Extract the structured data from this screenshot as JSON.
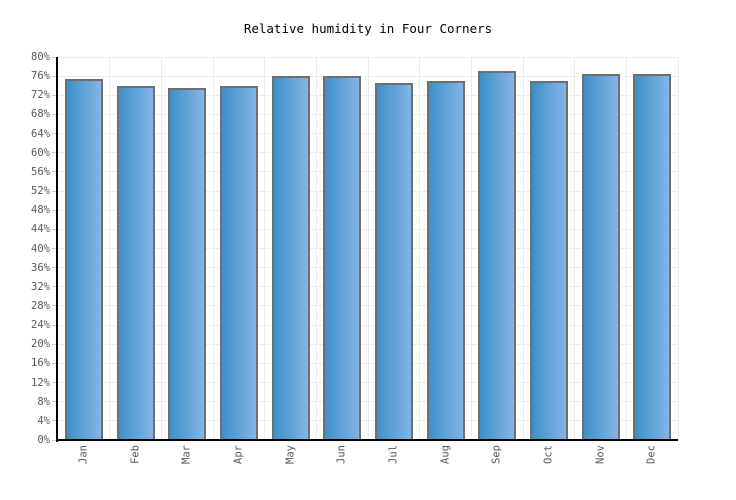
{
  "title": "Relative humidity in Four Corners",
  "chart_data": {
    "type": "bar",
    "title": "Relative humidity in Four Corners",
    "categories": [
      "Jan",
      "Feb",
      "Mar",
      "Apr",
      "May",
      "Jun",
      "Jul",
      "Aug",
      "Sep",
      "Oct",
      "Nov",
      "Dec"
    ],
    "values": [
      75.5,
      74,
      73.5,
      74,
      76,
      76,
      74.5,
      75,
      77,
      75,
      76.5,
      76.5
    ],
    "unit": "%",
    "xlabel": "",
    "ylabel": "",
    "ylim": [
      0,
      80
    ],
    "yticks": {
      "step": 4,
      "suffix": "%",
      "labels": [
        "0%",
        "4%",
        "8%",
        "12%",
        "16%",
        "20%",
        "24%",
        "28%",
        "32%",
        "36%",
        "40%",
        "44%",
        "48%",
        "52%",
        "56%",
        "60%",
        "64%",
        "68%",
        "72%",
        "76%",
        "80%"
      ]
    },
    "grid": true,
    "legend": null,
    "x_label_rotation_deg": -90,
    "colors": {
      "background": "#ffffff",
      "title": "#000000",
      "tick_label": "#595959",
      "tick_mark": "#cccccc",
      "gridline": "#ececec",
      "axis": "#000000",
      "bar_gradient_left": "#3c90c8",
      "bar_gradient_right": "#85b5e6",
      "bar_border": "#6f6f6f"
    }
  }
}
